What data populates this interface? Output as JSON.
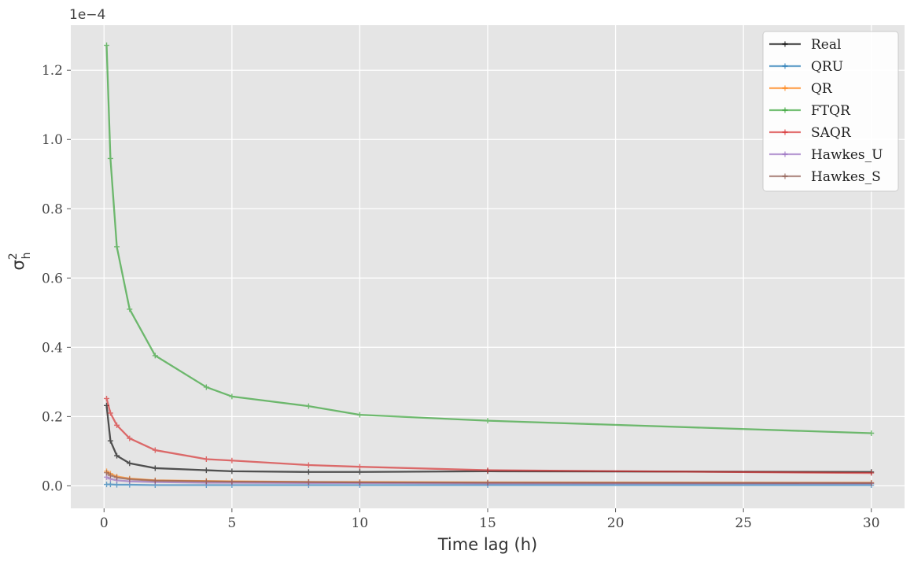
{
  "chart_data": {
    "type": "line",
    "xlabel": "Time lag (h)",
    "ylabel_base": "σ",
    "ylabel_sup": "2",
    "ylabel_sub": "h",
    "y_offset_label": "1e−4",
    "xlim": [
      -1.3,
      31.3
    ],
    "ylim": [
      -0.065,
      1.33
    ],
    "xticks": [
      0,
      5,
      10,
      15,
      20,
      25,
      30
    ],
    "xtick_labels": [
      "0",
      "5",
      "10",
      "15",
      "20",
      "25",
      "30"
    ],
    "yticks": [
      0.0,
      0.2,
      0.4,
      0.6,
      0.8,
      1.0,
      1.2
    ],
    "ytick_labels": [
      "0.0",
      "0.2",
      "0.4",
      "0.6",
      "0.8",
      "1.0",
      "1.2"
    ],
    "grid": true,
    "legend_position": "top-right",
    "x": [
      0.1,
      0.25,
      0.5,
      1,
      2,
      4,
      5,
      8,
      10,
      15,
      30
    ],
    "series": [
      {
        "name": "Real",
        "color": "#000000",
        "values": [
          0.232,
          0.13,
          0.087,
          0.065,
          0.051,
          0.045,
          0.042,
          0.04,
          0.04,
          0.042,
          0.04
        ]
      },
      {
        "name": "QRU",
        "color": "#1f77b4",
        "values": [
          0.004,
          0.004,
          0.003,
          0.003,
          0.002,
          0.002,
          0.002,
          0.002,
          0.002,
          0.002,
          0.002
        ]
      },
      {
        "name": "QR",
        "color": "#ff7f0e",
        "values": [
          0.042,
          0.035,
          0.027,
          0.021,
          0.016,
          0.014,
          0.013,
          0.011,
          0.011,
          0.01,
          0.009
        ]
      },
      {
        "name": "FTQR",
        "color": "#2ca02c",
        "values": [
          1.272,
          0.945,
          0.69,
          0.51,
          0.376,
          0.285,
          0.258,
          0.23,
          0.205,
          0.188,
          0.152
        ]
      },
      {
        "name": "SAQR",
        "color": "#d62728",
        "values": [
          0.252,
          0.21,
          0.175,
          0.137,
          0.103,
          0.077,
          0.073,
          0.06,
          0.055,
          0.045,
          0.037
        ]
      },
      {
        "name": "Hawkes_U",
        "color": "#9467bd",
        "values": [
          0.025,
          0.02,
          0.016,
          0.013,
          0.011,
          0.009,
          0.009,
          0.008,
          0.008,
          0.007,
          0.007
        ]
      },
      {
        "name": "Hawkes_S",
        "color": "#8c564b",
        "values": [
          0.038,
          0.03,
          0.024,
          0.019,
          0.015,
          0.013,
          0.012,
          0.011,
          0.01,
          0.009,
          0.008
        ]
      }
    ]
  },
  "colors": {
    "plot_background": "#e5e5e5",
    "grid": "#ffffff",
    "legend_background": "#ffffff"
  }
}
